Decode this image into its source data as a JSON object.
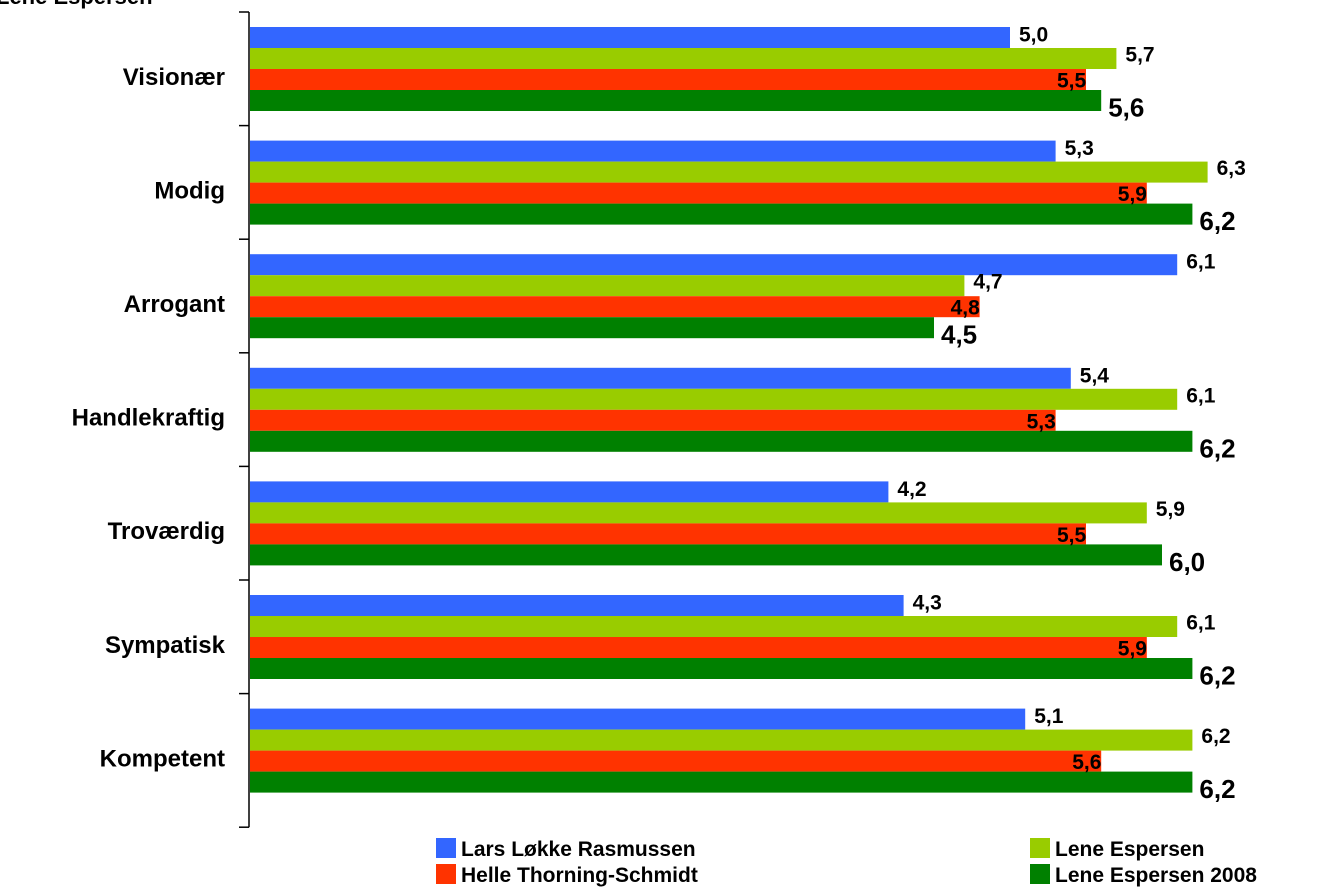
{
  "title_fragment": "Lene Espersen",
  "chart_data": {
    "type": "bar",
    "orientation": "horizontal",
    "categories": [
      "Visionær",
      "Modig",
      "Arrogant",
      "Handlekraftig",
      "Troværdig",
      "Sympatisk",
      "Kompetent"
    ],
    "series": [
      {
        "name": "Lars Løkke Rasmussen",
        "color": "#3366ff",
        "values": [
          5.0,
          5.3,
          6.1,
          5.4,
          4.2,
          4.3,
          5.1
        ],
        "labels": [
          "5,0",
          "5,3",
          "6,1",
          "5,4",
          "4,2",
          "4,3",
          "5,1"
        ]
      },
      {
        "name": "Lene Espersen",
        "color": "#99cc00",
        "values": [
          5.7,
          6.3,
          4.7,
          6.1,
          5.9,
          6.1,
          6.2
        ],
        "labels": [
          "5,7",
          "6,3",
          "4,7",
          "6,1",
          "5,9",
          "6,1",
          "6,2"
        ]
      },
      {
        "name": "Helle Thorning-Schmidt",
        "color": "#ff3300",
        "values": [
          5.5,
          5.9,
          4.8,
          5.3,
          5.5,
          5.9,
          5.6
        ],
        "labels": [
          "5,5",
          "5,9",
          "4,8",
          "5,3",
          "5,5",
          "5,9",
          "5,6"
        ]
      },
      {
        "name": "Lene Espersen 2008",
        "color": "#008000",
        "values": [
          5.6,
          6.2,
          4.5,
          6.2,
          6.0,
          6.2,
          6.2
        ],
        "labels": [
          "5,6",
          "6,2",
          "4,5",
          "6,2",
          "6,0",
          "6,2",
          "6,2"
        ]
      }
    ],
    "xlim": [
      0,
      7
    ],
    "grid": false,
    "legend_position": "bottom"
  }
}
